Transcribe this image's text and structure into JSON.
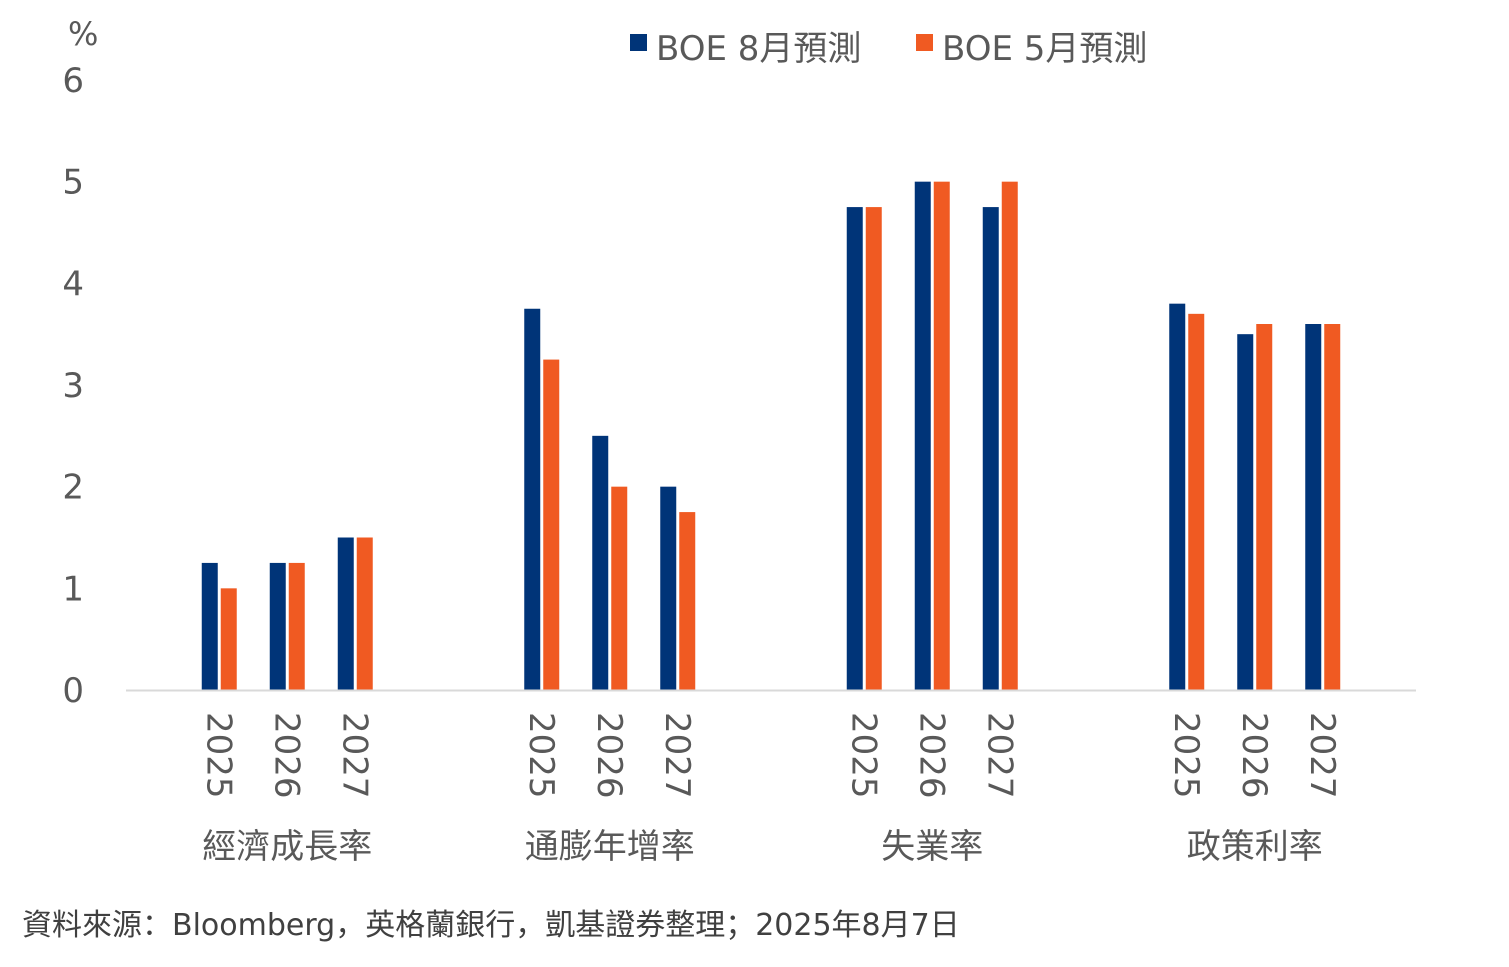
{
  "chart_data": {
    "type": "bar",
    "unit_label": "%",
    "ylim": [
      0,
      6
    ],
    "yticks": [
      "0",
      "1",
      "2",
      "3",
      "4",
      "5",
      "6"
    ],
    "groups": [
      "經濟成長率",
      "通膨年增率",
      "失業率",
      "政策利率"
    ],
    "years": [
      "2025",
      "2026",
      "2027"
    ],
    "series": [
      {
        "name": "BOE 8月預測",
        "color": "#003478",
        "values": [
          [
            1.25,
            1.25,
            1.5
          ],
          [
            3.75,
            2.5,
            2.0
          ],
          [
            4.75,
            5.0,
            4.75
          ],
          [
            3.8,
            3.5,
            3.6
          ]
        ]
      },
      {
        "name": "BOE 5月預測",
        "color": "#F05A22",
        "values": [
          [
            1.0,
            1.25,
            1.5
          ],
          [
            3.25,
            2.0,
            1.75
          ],
          [
            4.75,
            5.0,
            5.0
          ],
          [
            3.7,
            3.6,
            3.6
          ]
        ]
      }
    ],
    "legend_position": "top-center",
    "grid": false,
    "axis_color": "#D9D9D9"
  },
  "source": "資料來源：Bloomberg，英格蘭銀行，凱基證券整理；2025年8月7日"
}
